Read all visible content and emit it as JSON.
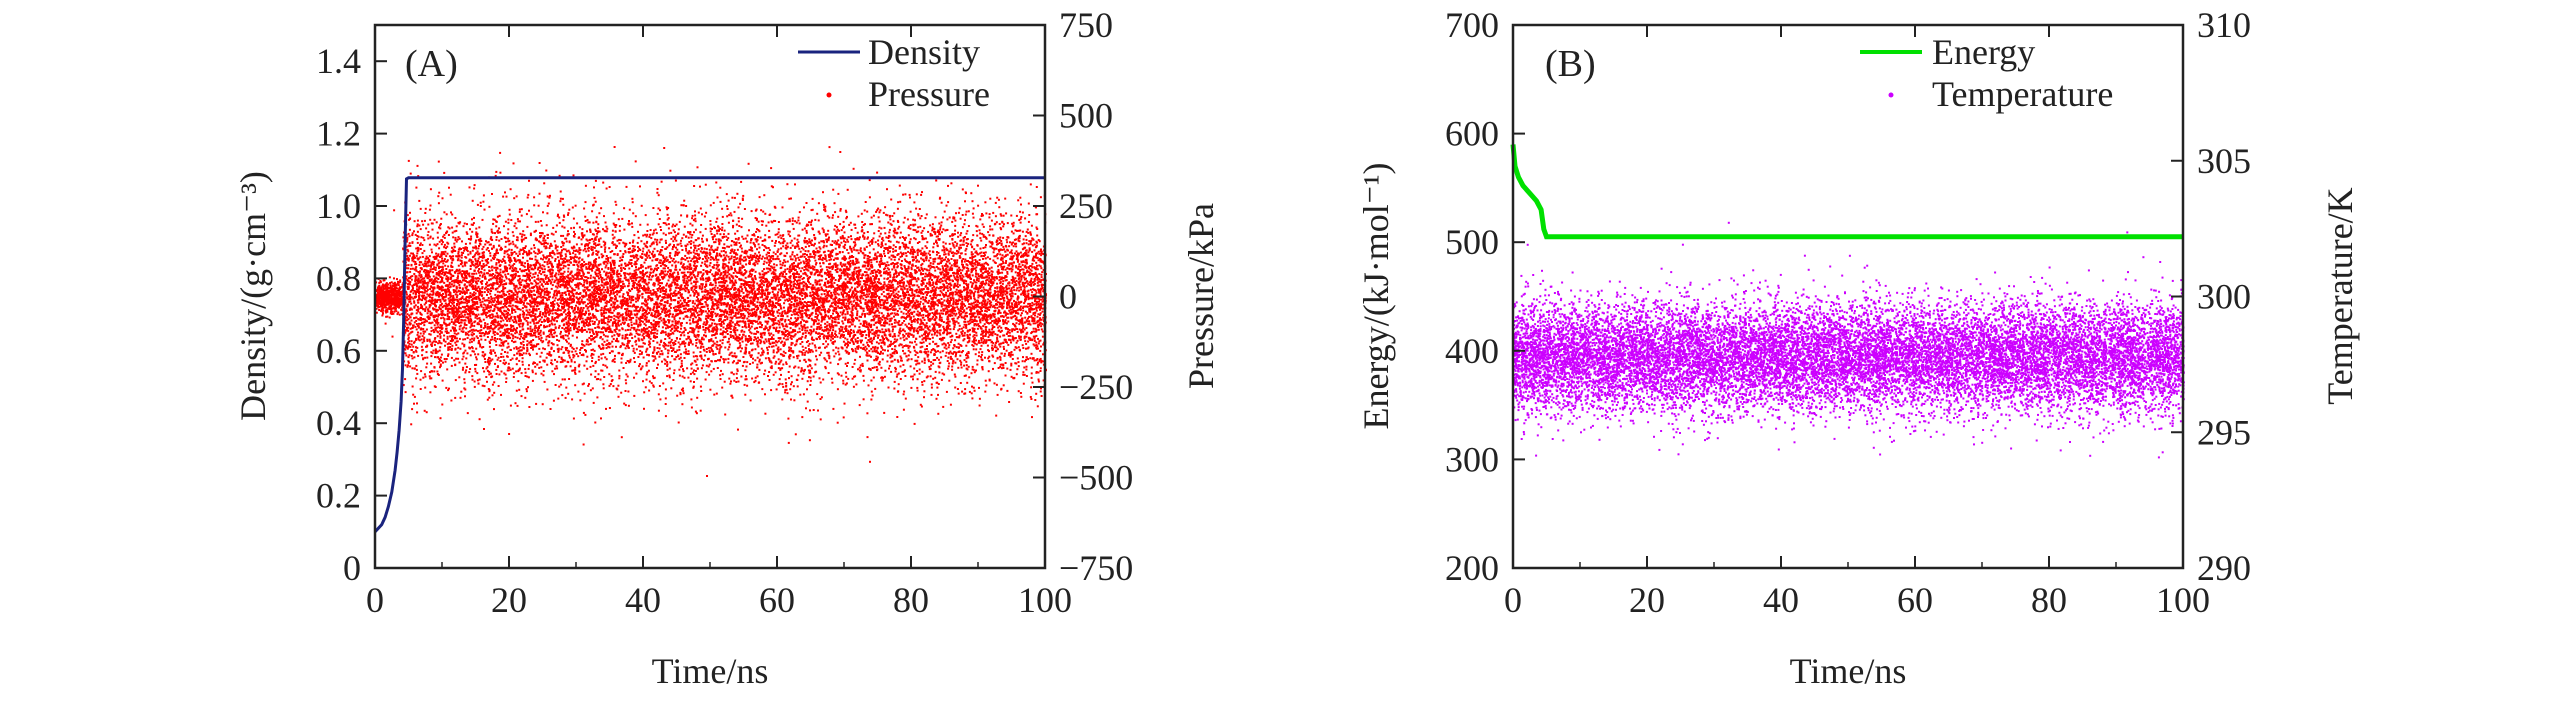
{
  "chart_data": [
    {
      "type": "line",
      "panel_label": "(A)",
      "xlabel": "Time/ns",
      "ylabel_left": "Density/(g·cm⁻³)",
      "ylabel_right": "Pressure/kPa",
      "xlim": [
        0,
        100
      ],
      "ylim_left": [
        0,
        1.5
      ],
      "ylim_right": [
        -750,
        750
      ],
      "x_ticks": [
        "0",
        "20",
        "40",
        "60",
        "80",
        "100"
      ],
      "y_ticks_left": [
        "0",
        "0.2",
        "0.4",
        "0.6",
        "0.8",
        "1.0",
        "1.2",
        "1.4"
      ],
      "y_ticks_right": [
        "−750",
        "−500",
        "−250",
        "0",
        "250",
        "500",
        "750"
      ],
      "legend": [
        {
          "name": "Density",
          "style": "line"
        },
        {
          "name": "Pressure",
          "style": "dots"
        }
      ],
      "series": [
        {
          "name": "Density",
          "axis": "left",
          "color": "#1a237e",
          "x": [
            0,
            0.5,
            1,
            1.5,
            2,
            2.5,
            3,
            3.3,
            3.6,
            3.9,
            4.1,
            4.3,
            4.5,
            4.7,
            5,
            100
          ],
          "y": [
            0.1,
            0.11,
            0.12,
            0.14,
            0.17,
            0.21,
            0.27,
            0.32,
            0.38,
            0.46,
            0.55,
            0.7,
            0.9,
            1.075,
            1.078,
            1.078
          ]
        },
        {
          "name": "Pressure",
          "axis": "right",
          "color": "#ff0000",
          "note": "dense noisy scatter",
          "x_range": [
            0,
            100
          ],
          "mean": 0,
          "std_early_0_to_4ns": 20,
          "std": 110,
          "outlier_range": [
            -500,
            450
          ]
        }
      ]
    },
    {
      "type": "line",
      "panel_label": "(B)",
      "xlabel": "Time/ns",
      "ylabel_left": "Energy/(kJ·mol⁻¹)",
      "ylabel_right": "Temperature/K",
      "xlim": [
        0,
        100
      ],
      "ylim_left": [
        200,
        700
      ],
      "ylim_right": [
        290,
        310
      ],
      "x_ticks": [
        "0",
        "20",
        "40",
        "60",
        "80",
        "100"
      ],
      "y_ticks_left": [
        "200",
        "300",
        "400",
        "500",
        "600",
        "700"
      ],
      "y_ticks_right": [
        "290",
        "295",
        "300",
        "305",
        "310"
      ],
      "legend": [
        {
          "name": "Energy",
          "style": "line"
        },
        {
          "name": "Temperature",
          "style": "dots"
        }
      ],
      "series": [
        {
          "name": "Energy",
          "axis": "left",
          "color": "#00e000",
          "x": [
            0,
            0.3,
            0.8,
            1.5,
            2.5,
            3.5,
            4.2,
            4.6,
            5,
            100
          ],
          "y": [
            590,
            570,
            560,
            552,
            545,
            538,
            530,
            512,
            505,
            505
          ]
        },
        {
          "name": "Temperature",
          "axis": "right",
          "color": "#cc00ff",
          "note": "dense noisy scatter",
          "x_range": [
            0,
            100
          ],
          "mean": 297.8,
          "std": 1.0,
          "outlier_range": [
            294,
            303.5
          ]
        }
      ]
    }
  ]
}
